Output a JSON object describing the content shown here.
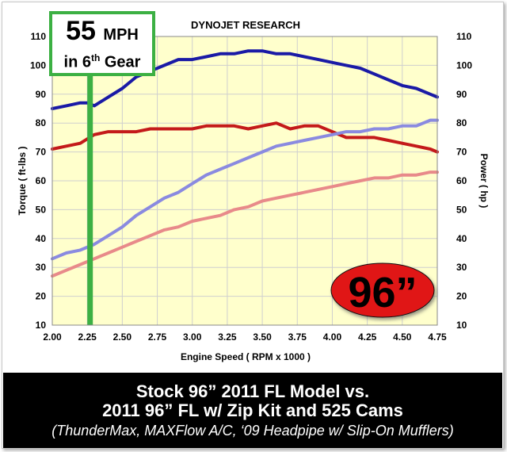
{
  "chart_data": {
    "type": "line",
    "title": "DYNOJET RESEARCH",
    "xlabel": "Engine Speed ( RPM x 1000 )",
    "ylabel_left": "Torque ( ft-lbs )",
    "ylabel_right": "Power ( hp )",
    "xlim": [
      2.0,
      4.75
    ],
    "ylim": [
      10,
      110
    ],
    "xticks": [
      "2.00",
      "2.25",
      "2.50",
      "2.75",
      "3.00",
      "3.25",
      "3.50",
      "3.75",
      "4.00",
      "4.25",
      "4.50",
      "4.75"
    ],
    "yticks_left": [
      "10",
      "20",
      "30",
      "40",
      "50",
      "60",
      "70",
      "80",
      "90",
      "100",
      "110"
    ],
    "yticks_right": [
      "10",
      "20",
      "30",
      "40",
      "50",
      "60",
      "70",
      "80",
      "90",
      "100",
      "110"
    ],
    "grid": true,
    "colors": {
      "plot_bg": "#ffffcc",
      "grid": "#cfcfcf",
      "torque_mod": "#1a1aa6",
      "torque_stock": "#c41a1a",
      "power_mod": "#8a8ae0",
      "power_stock": "#e88a8a",
      "marker": "#3cb043",
      "badge": "#e01919"
    },
    "series": [
      {
        "key": "torque_mod",
        "x": [
          2.0,
          2.1,
          2.2,
          2.25,
          2.3,
          2.4,
          2.5,
          2.6,
          2.7,
          2.8,
          2.9,
          3.0,
          3.1,
          3.2,
          3.3,
          3.4,
          3.5,
          3.6,
          3.7,
          3.8,
          3.9,
          4.0,
          4.1,
          4.2,
          4.3,
          4.4,
          4.5,
          4.6,
          4.7,
          4.75
        ],
        "values": [
          85,
          86,
          87,
          87,
          86,
          89,
          92,
          96,
          98,
          100,
          102,
          102,
          103,
          104,
          104,
          105,
          105,
          104,
          104,
          103,
          102,
          101,
          100,
          99,
          97,
          95,
          93,
          92,
          90,
          89
        ]
      },
      {
        "key": "torque_stock",
        "x": [
          2.0,
          2.1,
          2.2,
          2.3,
          2.4,
          2.5,
          2.6,
          2.7,
          2.8,
          2.9,
          3.0,
          3.1,
          3.2,
          3.3,
          3.4,
          3.5,
          3.6,
          3.7,
          3.8,
          3.9,
          4.0,
          4.1,
          4.2,
          4.3,
          4.4,
          4.5,
          4.6,
          4.7,
          4.75
        ],
        "values": [
          71,
          72,
          73,
          76,
          77,
          77,
          77,
          78,
          78,
          78,
          78,
          79,
          79,
          79,
          78,
          79,
          80,
          78,
          79,
          79,
          77,
          75,
          75,
          75,
          74,
          73,
          72,
          71,
          70
        ]
      },
      {
        "key": "power_mod",
        "x": [
          2.0,
          2.1,
          2.2,
          2.3,
          2.4,
          2.5,
          2.6,
          2.7,
          2.8,
          2.9,
          3.0,
          3.1,
          3.2,
          3.3,
          3.4,
          3.5,
          3.6,
          3.7,
          3.8,
          3.9,
          4.0,
          4.1,
          4.2,
          4.3,
          4.4,
          4.5,
          4.6,
          4.7,
          4.75
        ],
        "values": [
          33,
          35,
          36,
          38,
          41,
          44,
          48,
          51,
          54,
          56,
          59,
          62,
          64,
          66,
          68,
          70,
          72,
          73,
          74,
          75,
          76,
          77,
          77,
          78,
          78,
          79,
          79,
          81,
          81
        ]
      },
      {
        "key": "power_stock",
        "x": [
          2.0,
          2.1,
          2.2,
          2.3,
          2.4,
          2.5,
          2.6,
          2.7,
          2.8,
          2.9,
          3.0,
          3.1,
          3.2,
          3.3,
          3.4,
          3.5,
          3.6,
          3.7,
          3.8,
          3.9,
          4.0,
          4.1,
          4.2,
          4.3,
          4.4,
          4.5,
          4.6,
          4.7,
          4.75
        ],
        "values": [
          27,
          29,
          31,
          33,
          35,
          37,
          39,
          41,
          43,
          44,
          46,
          47,
          48,
          50,
          51,
          53,
          54,
          55,
          56,
          57,
          58,
          59,
          60,
          61,
          61,
          62,
          62,
          63,
          63
        ]
      }
    ],
    "marker_x": 2.27
  },
  "speed_box": {
    "value": "55",
    "unit": "MPH",
    "gear_prefix": "in 6",
    "gear_sup": "th",
    "gear_suffix": " Gear"
  },
  "badge": {
    "label": "96”"
  },
  "caption": {
    "line1": "Stock 96” 2011 FL Model vs.",
    "line2": "2011 96” FL w/ Zip Kit and 525 Cams",
    "line3": "(ThunderMax, MAXFlow A/C, ‘09 Headpipe w/ Slip-On Mufflers)"
  }
}
